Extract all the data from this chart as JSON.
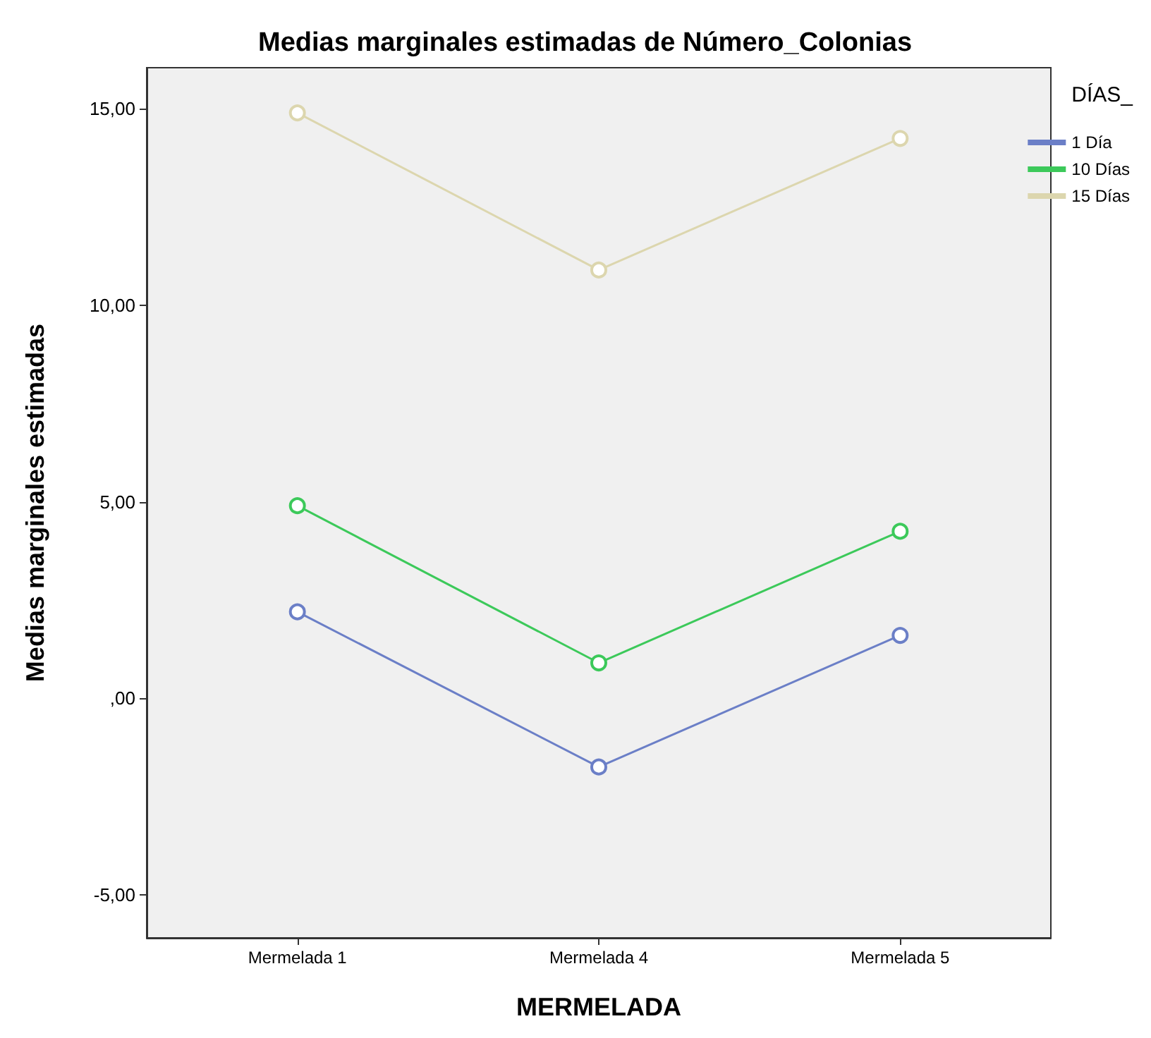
{
  "chart_data": {
    "type": "line",
    "title": "Medias marginales estimadas de Número_Colonias",
    "xlabel": "MERMELADA",
    "ylabel": "Medias marginales estimadas",
    "legend_title": "DÍAS_",
    "categories": [
      "Mermelada 1",
      "Mermelada 4",
      "Mermelada 5"
    ],
    "series": [
      {
        "name": "1 Día",
        "color": "#6b7fc7",
        "values": [
          2.2,
          -1.75,
          1.6
        ]
      },
      {
        "name": "10 Días",
        "color": "#3cc95a",
        "values": [
          4.9,
          0.9,
          4.25
        ]
      },
      {
        "name": "15 Días",
        "color": "#dcd6ae",
        "values": [
          14.9,
          10.9,
          14.25
        ]
      }
    ],
    "ylim": [
      -6.1,
      16.05
    ],
    "yticks": [
      {
        "value": -5,
        "label": "-5,00"
      },
      {
        "value": 0,
        "label": ",00"
      },
      {
        "value": 5,
        "label": "5,00"
      },
      {
        "value": 10,
        "label": "10,00"
      },
      {
        "value": 15,
        "label": "15,00"
      }
    ],
    "grid": false,
    "legend": "top right",
    "marker": "circle",
    "line_style": "solid"
  }
}
